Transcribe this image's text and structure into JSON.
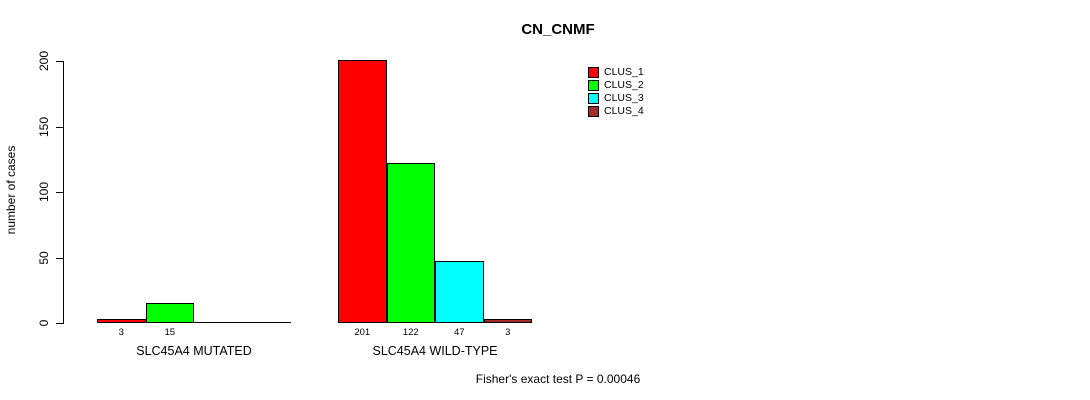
{
  "chart_data": {
    "type": "bar",
    "title": "CN_CNMF",
    "ylabel": "number of cases",
    "ylim": [
      0,
      200
    ],
    "yticks": [
      0,
      50,
      100,
      150,
      200
    ],
    "grid": false,
    "legend_position": "top-right",
    "categories": [
      "SLC45A4 MUTATED",
      "SLC45A4 WILD-TYPE"
    ],
    "series": [
      {
        "name": "CLUS_1",
        "color": "#FF0000",
        "values": [
          3,
          201
        ]
      },
      {
        "name": "CLUS_2",
        "color": "#00FF00",
        "values": [
          15,
          122
        ]
      },
      {
        "name": "CLUS_3",
        "color": "#00FFFF",
        "values": [
          0,
          47
        ]
      },
      {
        "name": "CLUS_4",
        "color": "#A52A2A",
        "values": [
          0,
          3
        ]
      }
    ],
    "groups": [
      {
        "label": "SLC45A4 MUTATED",
        "values": [
          3,
          15,
          0,
          0
        ],
        "value_labels": [
          "3",
          "15",
          "",
          ""
        ]
      },
      {
        "label": "SLC45A4 WILD-TYPE",
        "values": [
          201,
          122,
          47,
          3
        ],
        "value_labels": [
          "201",
          "122",
          "47",
          "3"
        ]
      }
    ],
    "annotation": "Fisher's exact test P = 0.00046"
  }
}
